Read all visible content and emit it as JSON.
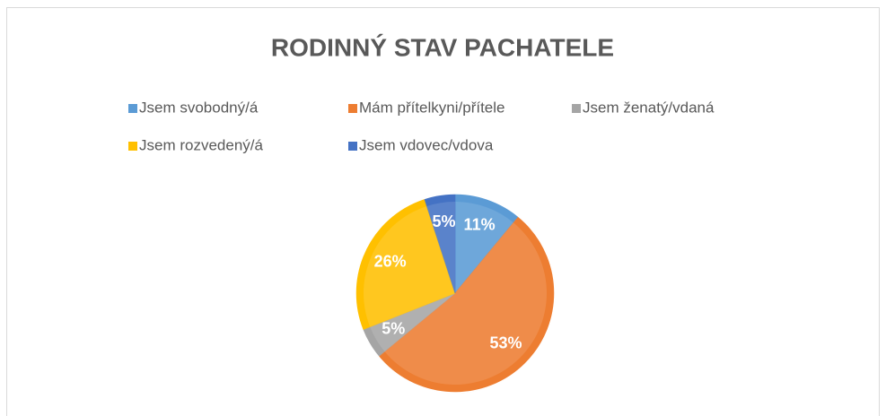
{
  "chart_data": {
    "type": "pie",
    "title": "RODINNÝ STAV PACHATELE",
    "categories": [
      "Jsem svobodný/á",
      "Mám přítelkyni/přítele",
      "Jsem ženatý/vdaná",
      "Jsem rozvedený/á",
      "Jsem vdovec/vdova"
    ],
    "values": [
      11,
      53,
      5,
      26,
      5
    ],
    "value_labels": [
      "11%",
      "53%",
      "5%",
      "26%",
      "5%"
    ],
    "colors": [
      "#5b9bd5",
      "#ed7d31",
      "#a5a5a5",
      "#ffc000",
      "#4472c4"
    ],
    "legend": "top"
  }
}
